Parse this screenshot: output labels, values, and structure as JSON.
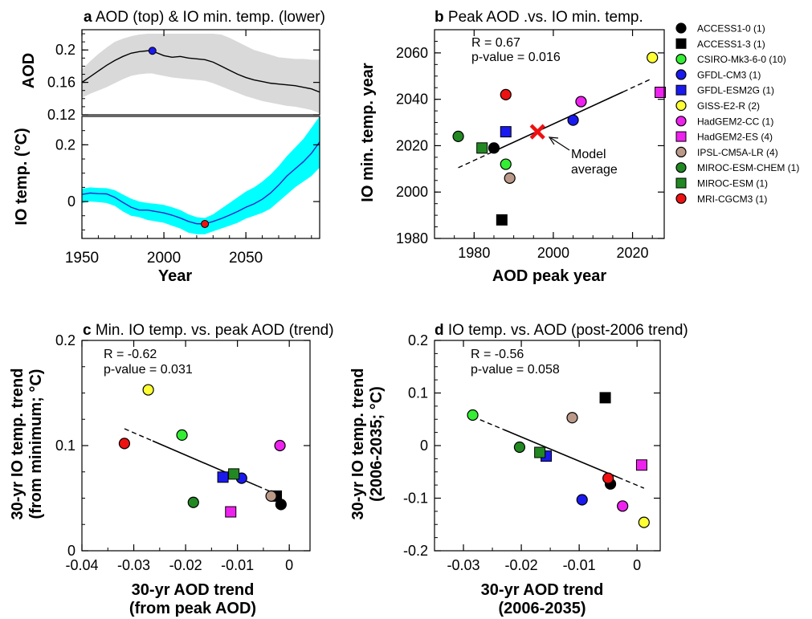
{
  "colors": {
    "ACCESS1-0": "#000000",
    "ACCESS1-3": "#000000",
    "CSIRO-Mk3-6-0": "#33ee33",
    "GFDL-CM3": "#1a1aee",
    "GFDL-ESM2G": "#1a1aee",
    "GISS-E2-R": "#ffff33",
    "HadGEM2-CC": "#ee22ee",
    "HadGEM2-ES": "#ee22ee",
    "IPSL-CM5A-LR": "#bb9988",
    "MIROC-ESM-CHEM": "#228822",
    "MIROC-ESM": "#228822",
    "MRI-CGCM3": "#ee1111",
    "aod_band": "#d9d9d9",
    "io_band": "#00ffff",
    "io_line": "#2222cc",
    "model_average": "#ee1111"
  },
  "legend": {
    "title": "",
    "position": "right of panel b",
    "entries": [
      {
        "model": "ACCESS1-0",
        "label": "ACCESS1-0 (1)",
        "marker": "circle"
      },
      {
        "model": "ACCESS1-3",
        "label": "ACCESS1-3 (1)",
        "marker": "square"
      },
      {
        "model": "CSIRO-Mk3-6-0",
        "label": "CSIRO-Mk3-6-0 (10)",
        "marker": "circle"
      },
      {
        "model": "GFDL-CM3",
        "label": "GFDL-CM3 (1)",
        "marker": "circle"
      },
      {
        "model": "GFDL-ESM2G",
        "label": "GFDL-ESM2G (1)",
        "marker": "square"
      },
      {
        "model": "GISS-E2-R",
        "label": "GISS-E2-R (2)",
        "marker": "circle"
      },
      {
        "model": "HadGEM2-CC",
        "label": "HadGEM2-CC (1)",
        "marker": "circle"
      },
      {
        "model": "HadGEM2-ES",
        "label": "HadGEM2-ES (4)",
        "marker": "square"
      },
      {
        "model": "IPSL-CM5A-LR",
        "label": "IPSL-CM5A-LR (4)",
        "marker": "circle"
      },
      {
        "model": "MIROC-ESM-CHEM",
        "label": "MIROC-ESM-CHEM (1)",
        "marker": "circle"
      },
      {
        "model": "MIROC-ESM",
        "label": "MIROC-ESM (1)",
        "marker": "square"
      },
      {
        "model": "MRI-CGCM3",
        "label": "MRI-CGCM3 (1)",
        "marker": "circle"
      }
    ]
  },
  "chart_data": [
    {
      "panel": "a",
      "type": "line",
      "title_letter": "a",
      "title": "AOD (top) & IO min. temp. (lower)",
      "xlabel": "Year",
      "xlim": [
        1950,
        2095
      ],
      "xticks": [
        1950,
        2000,
        2050
      ],
      "grid": false,
      "top": {
        "ylabel": "AOD",
        "ylim": [
          0.12,
          0.225
        ],
        "yticks": [
          0.12,
          0.16,
          0.2
        ],
        "ytick_labels": [
          "0.12",
          "0.16",
          "0.2"
        ],
        "mean": {
          "x": [
            1950,
            1955,
            1960,
            1965,
            1970,
            1975,
            1980,
            1985,
            1990,
            1993,
            1995,
            2000,
            2005,
            2010,
            2015,
            2020,
            2025,
            2030,
            2035,
            2040,
            2045,
            2050,
            2055,
            2060,
            2065,
            2070,
            2075,
            2080,
            2085,
            2090,
            2095
          ],
          "y": [
            0.16,
            0.167,
            0.174,
            0.181,
            0.187,
            0.192,
            0.196,
            0.198,
            0.199,
            0.199,
            0.197,
            0.193,
            0.191,
            0.192,
            0.19,
            0.189,
            0.188,
            0.185,
            0.18,
            0.175,
            0.17,
            0.166,
            0.163,
            0.161,
            0.159,
            0.158,
            0.157,
            0.156,
            0.154,
            0.152,
            0.148
          ]
        },
        "band_upper": [
          0.176,
          0.186,
          0.195,
          0.203,
          0.21,
          0.214,
          0.217,
          0.219,
          0.22,
          0.22,
          0.22,
          0.22,
          0.22,
          0.22,
          0.22,
          0.22,
          0.22,
          0.22,
          0.219,
          0.215,
          0.21,
          0.205,
          0.2,
          0.197,
          0.194,
          0.191,
          0.19,
          0.189,
          0.189,
          0.188,
          0.188
        ],
        "band_lower": [
          0.141,
          0.146,
          0.15,
          0.154,
          0.159,
          0.164,
          0.168,
          0.17,
          0.171,
          0.171,
          0.17,
          0.168,
          0.166,
          0.165,
          0.164,
          0.163,
          0.162,
          0.159,
          0.155,
          0.151,
          0.147,
          0.143,
          0.14,
          0.137,
          0.135,
          0.133,
          0.131,
          0.13,
          0.128,
          0.126,
          0.122
        ],
        "peak_marker": {
          "x": 1993,
          "y": 0.199
        }
      },
      "bottom": {
        "ylabel": "IO temp. (°C)",
        "ylim": [
          -0.13,
          0.3
        ],
        "yticks": [
          0,
          0.2
        ],
        "ytick_labels": [
          "0",
          "0.2"
        ],
        "mean": {
          "x": [
            1950,
            1955,
            1960,
            1965,
            1970,
            1975,
            1980,
            1985,
            1990,
            1995,
            2000,
            2005,
            2010,
            2015,
            2020,
            2025,
            2030,
            2035,
            2040,
            2045,
            2050,
            2055,
            2060,
            2065,
            2070,
            2075,
            2080,
            2085,
            2090,
            2095
          ],
          "y": [
            0.025,
            0.03,
            0.028,
            0.027,
            0.015,
            -0.003,
            -0.02,
            -0.03,
            -0.03,
            -0.035,
            -0.04,
            -0.048,
            -0.058,
            -0.07,
            -0.078,
            -0.079,
            -0.07,
            -0.06,
            -0.048,
            -0.035,
            -0.02,
            -0.008,
            0.008,
            0.03,
            0.058,
            0.09,
            0.115,
            0.14,
            0.17,
            0.21
          ]
        },
        "band_upper": [
          0.045,
          0.05,
          0.048,
          0.047,
          0.04,
          0.025,
          0.01,
          0,
          -0.005,
          -0.008,
          -0.012,
          -0.02,
          -0.03,
          -0.045,
          -0.055,
          -0.058,
          -0.045,
          -0.025,
          -0.005,
          0.015,
          0.035,
          0.05,
          0.07,
          0.095,
          0.125,
          0.16,
          0.19,
          0.22,
          0.26,
          0.3
        ],
        "band_lower": [
          -0.005,
          0,
          -0.002,
          -0.005,
          -0.015,
          -0.035,
          -0.05,
          -0.055,
          -0.065,
          -0.07,
          -0.075,
          -0.085,
          -0.095,
          -0.11,
          -0.115,
          -0.115,
          -0.105,
          -0.095,
          -0.085,
          -0.075,
          -0.06,
          -0.05,
          -0.04,
          -0.025,
          0,
          0.025,
          0.05,
          0.07,
          0.09,
          0.12
        ],
        "min_marker": {
          "x": 2025,
          "y": -0.079
        }
      }
    },
    {
      "panel": "b",
      "type": "scatter",
      "title_letter": "b",
      "title": "Peak AOD .vs. IO min. temp.",
      "xlabel": "AOD peak year",
      "ylabel": "IO min. temp. year",
      "xlim": [
        1970,
        2028
      ],
      "ylim": [
        1980,
        2070
      ],
      "xticks": [
        1980,
        2000,
        2020
      ],
      "yticks": [
        1980,
        2000,
        2020,
        2040,
        2060
      ],
      "stats": {
        "r": "R = 0.67",
        "p": "p-value = 0.016"
      },
      "points": [
        {
          "model": "ACCESS1-0",
          "x": 1985,
          "y": 2019
        },
        {
          "model": "ACCESS1-3",
          "x": 1987,
          "y": 1988
        },
        {
          "model": "CSIRO-Mk3-6-0",
          "x": 1988,
          "y": 2012
        },
        {
          "model": "GFDL-CM3",
          "x": 2005,
          "y": 2031
        },
        {
          "model": "GFDL-ESM2G",
          "x": 1988,
          "y": 2026
        },
        {
          "model": "GISS-E2-R",
          "x": 2025,
          "y": 2058
        },
        {
          "model": "HadGEM2-CC",
          "x": 2007,
          "y": 2039
        },
        {
          "model": "HadGEM2-ES",
          "x": 2027,
          "y": 2043
        },
        {
          "model": "IPSL-CM5A-LR",
          "x": 1989,
          "y": 2006
        },
        {
          "model": "MIROC-ESM-CHEM",
          "x": 1976,
          "y": 2024
        },
        {
          "model": "MIROC-ESM",
          "x": 1982,
          "y": 2019
        },
        {
          "model": "MRI-CGCM3",
          "x": 1988,
          "y": 2042
        }
      ],
      "fit": {
        "x": [
          1976,
          2025
        ],
        "y": [
          2010.5,
          2049
        ]
      },
      "model_average": {
        "x": 1996,
        "y": 2026,
        "label_line1": "Model",
        "label_line2": "average"
      }
    },
    {
      "panel": "c",
      "type": "scatter",
      "title_letter": "c",
      "title": "Min. IO temp. vs. peak AOD (trend)",
      "xlabel": "30-yr AOD trend",
      "xlabel2": "(from peak AOD)",
      "ylabel": "30-yr IO temp. trend",
      "ylabel2": "(from minimum; °C)",
      "xlim": [
        -0.04,
        0.004
      ],
      "ylim": [
        0,
        0.2
      ],
      "xticks": [
        -0.04,
        -0.03,
        -0.02,
        -0.01,
        0
      ],
      "xtick_labels": [
        "-0.04",
        "-0.03",
        "-0.02",
        "-0.01",
        "0"
      ],
      "yticks": [
        0,
        0.1,
        0.2
      ],
      "ytick_labels": [
        "0",
        "0.1",
        "0.2"
      ],
      "stats": {
        "r": "R = -0.62",
        "p": "p-value = 0.031"
      },
      "points": [
        {
          "model": "ACCESS1-0",
          "x": -0.0016,
          "y": 0.044
        },
        {
          "model": "ACCESS1-3",
          "x": -0.0025,
          "y": 0.052
        },
        {
          "model": "CSIRO-Mk3-6-0",
          "x": -0.0207,
          "y": 0.11
        },
        {
          "model": "GFDL-CM3",
          "x": -0.0092,
          "y": 0.069
        },
        {
          "model": "GFDL-ESM2G",
          "x": -0.0128,
          "y": 0.07
        },
        {
          "model": "GISS-E2-R",
          "x": -0.0272,
          "y": 0.153
        },
        {
          "model": "HadGEM2-CC",
          "x": -0.0018,
          "y": 0.1
        },
        {
          "model": "HadGEM2-ES",
          "x": -0.0113,
          "y": 0.037
        },
        {
          "model": "IPSL-CM5A-LR",
          "x": -0.0035,
          "y": 0.052
        },
        {
          "model": "MIROC-ESM-CHEM",
          "x": -0.0185,
          "y": 0.046
        },
        {
          "model": "MIROC-ESM",
          "x": -0.0107,
          "y": 0.073
        },
        {
          "model": "MRI-CGCM3",
          "x": -0.0318,
          "y": 0.102
        }
      ],
      "fit": {
        "x": [
          -0.0318,
          -0.0016
        ],
        "y": [
          0.116,
          0.052
        ]
      }
    },
    {
      "panel": "d",
      "type": "scatter",
      "title_letter": "d",
      "title": "IO temp. vs. AOD (post-2006 trend)",
      "xlabel": "30-yr AOD trend",
      "xlabel2": "(2006-2035)",
      "ylabel": "30-yr IO temp. trend",
      "ylabel2": "(2006-2035; °C)",
      "xlim": [
        -0.035,
        0.004
      ],
      "ylim": [
        -0.2,
        0.2
      ],
      "xticks": [
        -0.03,
        -0.02,
        -0.01,
        0
      ],
      "xtick_labels": [
        "-0.03",
        "-0.02",
        "-0.01",
        "0"
      ],
      "yticks": [
        -0.2,
        -0.1,
        0,
        0.1,
        0.2
      ],
      "ytick_labels": [
        "-0.2",
        "-0.1",
        "0",
        "0.1",
        "0.2"
      ],
      "stats": {
        "r": "R = -0.56",
        "p": "p-value = 0.058"
      },
      "points": [
        {
          "model": "ACCESS1-0",
          "x": -0.0046,
          "y": -0.073
        },
        {
          "model": "ACCESS1-3",
          "x": -0.0055,
          "y": 0.091
        },
        {
          "model": "CSIRO-Mk3-6-0",
          "x": -0.0284,
          "y": 0.058
        },
        {
          "model": "GFDL-CM3",
          "x": -0.0095,
          "y": -0.103
        },
        {
          "model": "GFDL-ESM2G",
          "x": -0.0157,
          "y": -0.02
        },
        {
          "model": "GISS-E2-R",
          "x": 0.0012,
          "y": -0.146
        },
        {
          "model": "HadGEM2-CC",
          "x": -0.0025,
          "y": -0.115
        },
        {
          "model": "HadGEM2-ES",
          "x": 0.0008,
          "y": -0.037
        },
        {
          "model": "IPSL-CM5A-LR",
          "x": -0.0112,
          "y": 0.053
        },
        {
          "model": "MIROC-ESM-CHEM",
          "x": -0.0203,
          "y": -0.003
        },
        {
          "model": "MIROC-ESM",
          "x": -0.0168,
          "y": -0.013
        },
        {
          "model": "MRI-CGCM3",
          "x": -0.005,
          "y": -0.062
        }
      ],
      "fit": {
        "x": [
          -0.0284,
          0.0012
        ],
        "y": [
          0.055,
          -0.081
        ]
      }
    }
  ]
}
